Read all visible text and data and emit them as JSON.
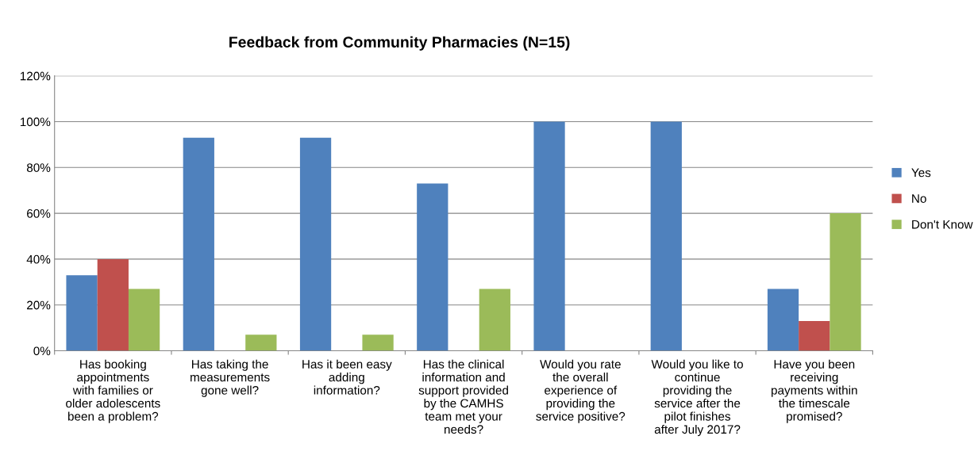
{
  "chart_data": {
    "type": "bar",
    "title": "Feedback from Community Pharmacies (N=15)",
    "categories": [
      "Has booking\nappointments\nwith families or\nolder adolescents\nbeen a problem?",
      "Has taking the\nmeasurements\ngone well?",
      "Has it been easy\nadding\ninformation?",
      "Has the clinical\ninformation and\nsupport provided\nby the CAMHS\nteam met your\nneeds?",
      "Would you rate\nthe overall\nexperience of\nproviding the\nservice positive?",
      "Would you like to\ncontinue\nproviding the\nservice after the\npilot finishes\nafter July 2017?",
      "Have you been\nreceiving\npayments within\nthe timescale\npromised?"
    ],
    "series": [
      {
        "name": "Yes",
        "color": "#4f81bd",
        "values": [
          33,
          93,
          93,
          73,
          100,
          100,
          27
        ]
      },
      {
        "name": "No",
        "color": "#c0504d",
        "values": [
          40,
          0,
          0,
          0,
          0,
          0,
          13
        ]
      },
      {
        "name": "Don't Know",
        "color": "#9bbb59",
        "values": [
          27,
          7,
          7,
          27,
          0,
          0,
          60
        ]
      }
    ],
    "ylim": [
      0,
      120
    ],
    "yticks": [
      {
        "value": 0,
        "label": "0%"
      },
      {
        "value": 20,
        "label": "20%"
      },
      {
        "value": 40,
        "label": "40%"
      },
      {
        "value": 60,
        "label": "60%"
      },
      {
        "value": 80,
        "label": "80%"
      },
      {
        "value": 100,
        "label": "100%"
      },
      {
        "value": 120,
        "label": "120%"
      }
    ],
    "grid": "y",
    "legend": "right"
  }
}
